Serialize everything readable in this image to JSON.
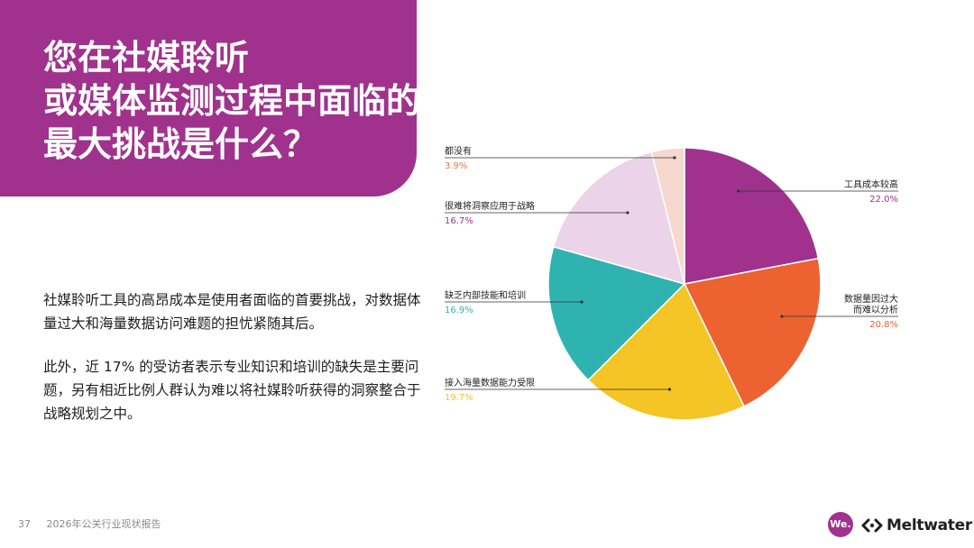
{
  "title": {
    "lines": [
      "您在社媒聆听",
      "或媒体监测过程中面临的",
      "最大挑战是什么？"
    ]
  },
  "body": {
    "paragraphs": [
      "社媒聆听工具的高昂成本是使用者面临的首要挑战，对数据体量过大和海量数据访问难题的担忧紧随其后。",
      "此外，近 17% 的受访者表示专业知识和培训的缺失是主要问题，另有相近比例人群认为难以将社媒聆听获得的洞察整合于战略规划之中。"
    ]
  },
  "chart_data": {
    "type": "pie",
    "slices": [
      {
        "label": "工具成本较高",
        "value": 22.0,
        "value_label": "22.0%",
        "color": "#A0328E"
      },
      {
        "label": "数据量因过大\n而难以分析",
        "value": 20.8,
        "value_label": "20.8%",
        "color": "#EC6230"
      },
      {
        "label": "接入海量数据能力受限",
        "value": 19.7,
        "value_label": "19.7%",
        "color": "#F5C526"
      },
      {
        "label": "缺乏内部技能和培训",
        "value": 16.9,
        "value_label": "16.9%",
        "color": "#2FB3B1"
      },
      {
        "label": "很难将洞察应用于战略",
        "value": 16.7,
        "value_label": "16.7%",
        "color": "#EBD4E9"
      },
      {
        "label": "都没有",
        "value": 3.9,
        "value_label": "3.9%",
        "color": "#F7D8CE"
      }
    ],
    "start_angle_deg": 0,
    "direction": "clockwise",
    "legend": "none"
  },
  "footer": {
    "page_number": "37",
    "report_title": "2026年公关行业现状报告"
  },
  "logos": {
    "we": "We.",
    "meltwater": "Meltwater"
  }
}
